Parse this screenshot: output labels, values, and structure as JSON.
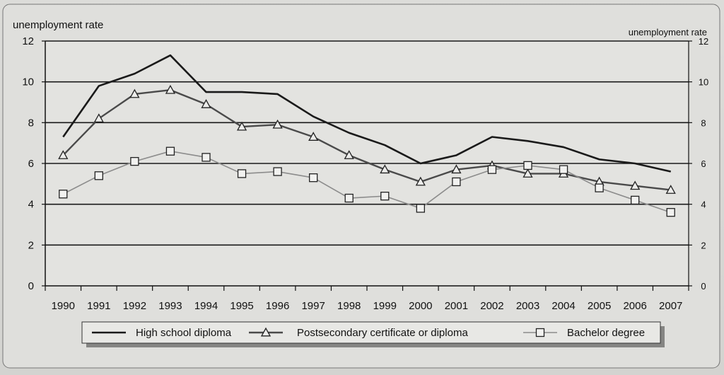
{
  "chart_data": {
    "type": "line",
    "y_axis_left_label": "unemployment rate",
    "y_axis_right_label": "unemployment rate",
    "xlabel": "",
    "ylim": [
      0,
      12
    ],
    "yticks": [
      "0",
      "2",
      "4",
      "6",
      "8",
      "10",
      "12"
    ],
    "categories": [
      "1990",
      "1991",
      "1992",
      "1993",
      "1994",
      "1995",
      "1996",
      "1997",
      "1998",
      "1999",
      "2000",
      "2001",
      "2002",
      "2003",
      "2004",
      "2005",
      "2006",
      "2007"
    ],
    "grid": "horizontal",
    "legend_position": "bottom",
    "series": [
      {
        "name": "High school diploma",
        "marker": "none",
        "color": "#1a1a1a",
        "values": [
          7.3,
          9.8,
          10.4,
          11.3,
          9.5,
          9.5,
          9.4,
          8.3,
          7.5,
          6.9,
          6.0,
          6.4,
          7.3,
          7.1,
          6.8,
          6.2,
          6.0,
          5.6
        ]
      },
      {
        "name": "Postsecondary certificate or diploma",
        "marker": "triangle",
        "color": "#4a4a4a",
        "values": [
          6.4,
          8.2,
          9.4,
          9.6,
          8.9,
          7.8,
          7.9,
          7.3,
          6.4,
          5.7,
          5.1,
          5.7,
          5.9,
          5.5,
          5.5,
          5.1,
          4.9,
          4.7
        ]
      },
      {
        "name": "Bachelor degree",
        "marker": "square",
        "color": "#8c8c8c",
        "values": [
          4.5,
          5.4,
          6.1,
          6.6,
          6.3,
          5.5,
          5.6,
          5.3,
          4.3,
          4.4,
          3.8,
          5.1,
          5.7,
          5.9,
          5.7,
          4.8,
          4.2,
          3.6
        ]
      }
    ]
  }
}
